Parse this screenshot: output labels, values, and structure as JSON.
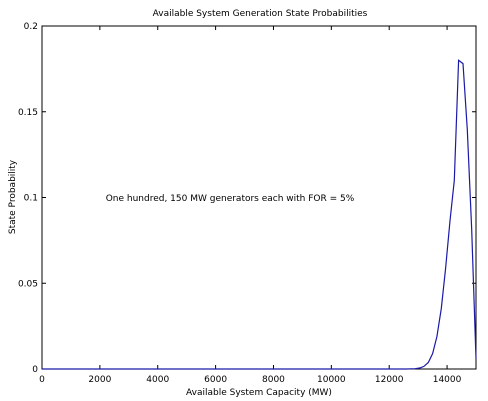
{
  "chart_data": {
    "type": "line",
    "title": "Available System Generation State Probabilities",
    "xlabel": "Available System Capacity (MW)",
    "ylabel": "State Probability",
    "annotation": "One hundred, 150 MW generators each with FOR = 5%",
    "xlim": [
      0,
      15000
    ],
    "ylim": [
      0,
      0.2
    ],
    "xticks": [
      0,
      2000,
      4000,
      6000,
      8000,
      10000,
      12000,
      14000
    ],
    "yticks": [
      0,
      0.05,
      0.1,
      0.15,
      0.2
    ],
    "xtick_labels": [
      "0",
      "2000",
      "4000",
      "6000",
      "8000",
      "10000",
      "12000",
      "14000"
    ],
    "ytick_labels": [
      "0",
      "0.05",
      "0.1",
      "0.15",
      "0.2"
    ],
    "grid": false,
    "series": [
      {
        "color": "#1a1aa8",
        "x": [
          0,
          12600,
          12750,
          12900,
          13050,
          13200,
          13350,
          13500,
          13650,
          13800,
          13950,
          14100,
          14250,
          14400,
          14550,
          14700,
          14850,
          15000
        ],
        "y": [
          0,
          0.0,
          0.0001,
          0.0002,
          0.0006,
          0.0015,
          0.0038,
          0.0089,
          0.0189,
          0.0353,
          0.0587,
          0.0864,
          0.11,
          0.18,
          0.1781,
          0.1396,
          0.0812,
          0.0059
        ]
      }
    ]
  }
}
